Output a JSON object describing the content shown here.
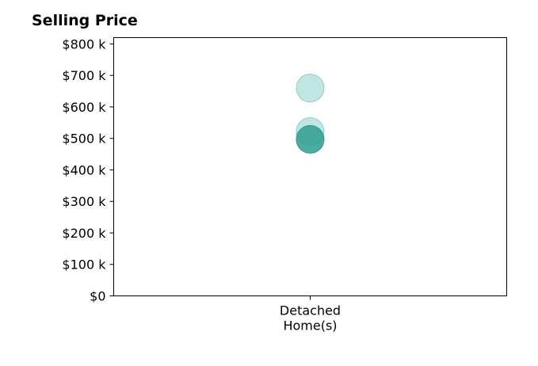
{
  "chart_data": {
    "type": "scatter",
    "title": "Selling Price",
    "xlabel": "",
    "ylabel": "",
    "categories": [
      [
        "Detached",
        "Home(s)"
      ]
    ],
    "ylim": [
      0,
      820000
    ],
    "yticks": [
      0,
      100000,
      200000,
      300000,
      400000,
      500000,
      600000,
      700000,
      800000
    ],
    "ytick_labels": [
      "$0",
      "$100 k",
      "$200 k",
      "$300 k",
      "$400 k",
      "$500 k",
      "$600 k",
      "$700 k",
      "$800 k"
    ],
    "grid": false,
    "points": [
      {
        "category": 0,
        "y": 660000,
        "highlight": false
      },
      {
        "category": 0,
        "y": 522000,
        "highlight": false
      },
      {
        "category": 0,
        "y": 497000,
        "highlight": true
      }
    ],
    "colors": {
      "point_fill": "#8dcfca",
      "point_highlight": "#2e9e8f",
      "axis": "#000000"
    }
  }
}
